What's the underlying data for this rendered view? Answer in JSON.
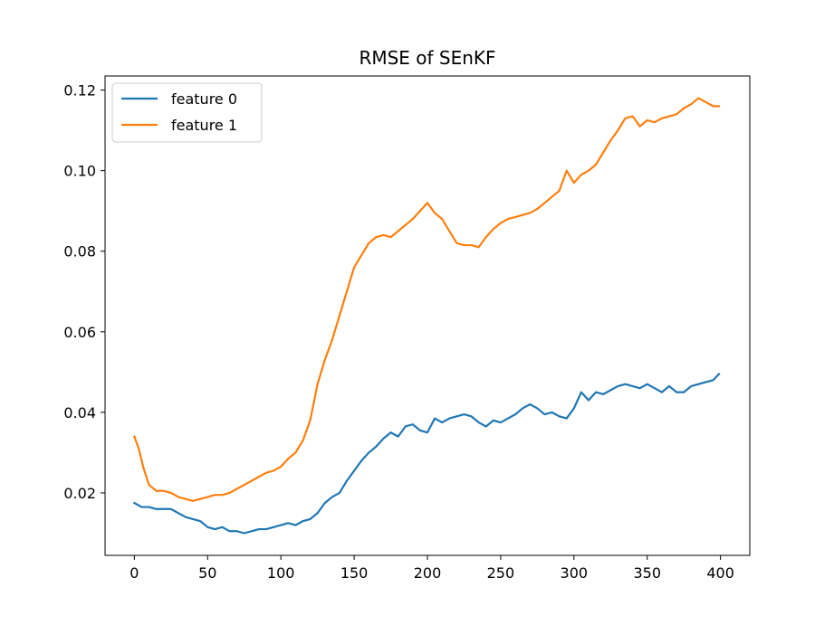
{
  "chart_data": {
    "type": "line",
    "title": "RMSE of SEnKF",
    "xlabel": "",
    "ylabel": "",
    "xlim": [
      -20,
      420
    ],
    "ylim": [
      0.0045,
      0.1235
    ],
    "xticks": [
      0,
      50,
      100,
      150,
      200,
      250,
      300,
      350,
      400
    ],
    "yticks": [
      0.02,
      0.04,
      0.06,
      0.08,
      0.1,
      0.12
    ],
    "xtick_labels": [
      "0",
      "50",
      "100",
      "150",
      "200",
      "250",
      "300",
      "350",
      "400"
    ],
    "ytick_labels": [
      "0.02",
      "0.04",
      "0.06",
      "0.08",
      "0.10",
      "0.12"
    ],
    "grid": false,
    "legend_position": "upper-left",
    "series": [
      {
        "name": "feature 0",
        "color": "#1f77b4",
        "x": [
          0,
          5,
          10,
          15,
          20,
          25,
          30,
          35,
          40,
          45,
          50,
          55,
          60,
          65,
          70,
          75,
          80,
          85,
          90,
          95,
          100,
          105,
          110,
          115,
          120,
          125,
          130,
          135,
          140,
          145,
          150,
          155,
          160,
          165,
          170,
          175,
          180,
          185,
          190,
          195,
          200,
          205,
          210,
          215,
          220,
          225,
          230,
          235,
          240,
          245,
          250,
          255,
          260,
          265,
          270,
          275,
          280,
          285,
          290,
          295,
          300,
          305,
          310,
          315,
          320,
          325,
          330,
          335,
          340,
          345,
          350,
          355,
          360,
          365,
          370,
          375,
          380,
          385,
          390,
          395,
          399
        ],
        "values": [
          0.0175,
          0.0165,
          0.0165,
          0.016,
          0.016,
          0.016,
          0.015,
          0.014,
          0.0135,
          0.013,
          0.0115,
          0.011,
          0.0115,
          0.0105,
          0.0105,
          0.01,
          0.0105,
          0.011,
          0.011,
          0.0115,
          0.012,
          0.0125,
          0.012,
          0.013,
          0.0135,
          0.015,
          0.0175,
          0.019,
          0.02,
          0.023,
          0.0255,
          0.028,
          0.03,
          0.0315,
          0.0335,
          0.035,
          0.034,
          0.0365,
          0.037,
          0.0355,
          0.035,
          0.0385,
          0.0375,
          0.0385,
          0.039,
          0.0395,
          0.039,
          0.0375,
          0.0365,
          0.038,
          0.0375,
          0.0385,
          0.0395,
          0.041,
          0.042,
          0.041,
          0.0395,
          0.04,
          0.039,
          0.0385,
          0.041,
          0.045,
          0.043,
          0.045,
          0.0445,
          0.0455,
          0.0465,
          0.047,
          0.0465,
          0.046,
          0.047,
          0.046,
          0.045,
          0.0465,
          0.045,
          0.045,
          0.0465,
          0.047,
          0.0475,
          0.048,
          0.0495
        ]
      },
      {
        "name": "feature 1",
        "color": "#ff7f0e",
        "x": [
          0,
          3,
          6,
          10,
          15,
          20,
          25,
          30,
          35,
          40,
          45,
          50,
          55,
          60,
          65,
          70,
          75,
          80,
          85,
          90,
          95,
          100,
          105,
          110,
          115,
          120,
          125,
          130,
          135,
          140,
          145,
          150,
          155,
          160,
          165,
          170,
          175,
          180,
          185,
          190,
          195,
          200,
          205,
          210,
          215,
          220,
          225,
          230,
          235,
          240,
          245,
          250,
          255,
          260,
          265,
          270,
          275,
          280,
          285,
          290,
          295,
          300,
          305,
          310,
          315,
          320,
          325,
          330,
          335,
          340,
          345,
          350,
          355,
          360,
          365,
          370,
          375,
          380,
          385,
          390,
          395,
          399
        ],
        "values": [
          0.034,
          0.031,
          0.0265,
          0.022,
          0.0205,
          0.0205,
          0.02,
          0.019,
          0.0185,
          0.018,
          0.0185,
          0.019,
          0.0195,
          0.0195,
          0.02,
          0.021,
          0.022,
          0.023,
          0.024,
          0.025,
          0.0255,
          0.0265,
          0.0285,
          0.03,
          0.033,
          0.038,
          0.047,
          0.053,
          0.058,
          0.064,
          0.07,
          0.076,
          0.079,
          0.082,
          0.0835,
          0.084,
          0.0835,
          0.085,
          0.0865,
          0.088,
          0.09,
          0.092,
          0.0895,
          0.088,
          0.085,
          0.082,
          0.0815,
          0.0815,
          0.081,
          0.0835,
          0.0855,
          0.087,
          0.088,
          0.0885,
          0.089,
          0.0895,
          0.0905,
          0.092,
          0.0935,
          0.095,
          0.1,
          0.097,
          0.099,
          0.1,
          0.1015,
          0.1045,
          0.1075,
          0.11,
          0.113,
          0.1135,
          0.111,
          0.1125,
          0.112,
          0.113,
          0.1135,
          0.114,
          0.1155,
          0.1165,
          0.118,
          0.117,
          0.116,
          0.116
        ]
      }
    ]
  }
}
